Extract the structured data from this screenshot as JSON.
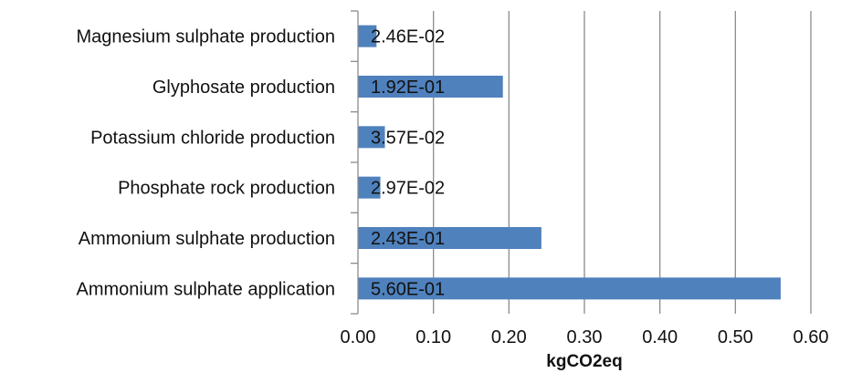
{
  "chart_data": {
    "type": "bar",
    "orientation": "horizontal",
    "categories": [
      "Magnesium sulphate production",
      "Glyphosate production",
      "Potassium chloride production",
      "Phosphate rock production",
      "Ammonium sulphate production",
      "Ammonium sulphate application"
    ],
    "values": [
      0.0246,
      0.192,
      0.0357,
      0.0297,
      0.243,
      0.56
    ],
    "data_labels": [
      "2.46E-02",
      "1.92E-01",
      "3.57E-02",
      "2.97E-02",
      "2.43E-01",
      "5.60E-01"
    ],
    "title": "",
    "xlabel": "kgCO2eq",
    "ylabel": "",
    "xlim": [
      0,
      0.6
    ],
    "x_ticks": [
      0,
      0.1,
      0.2,
      0.3,
      0.4,
      0.5,
      0.6
    ],
    "x_tick_labels": [
      "0.00",
      "0.10",
      "0.20",
      "0.30",
      "0.40",
      "0.50",
      "0.60"
    ],
    "grid": "vertical",
    "legend": "none",
    "bar_color": "#4F81BD",
    "grid_color": "#8C8C8C"
  }
}
